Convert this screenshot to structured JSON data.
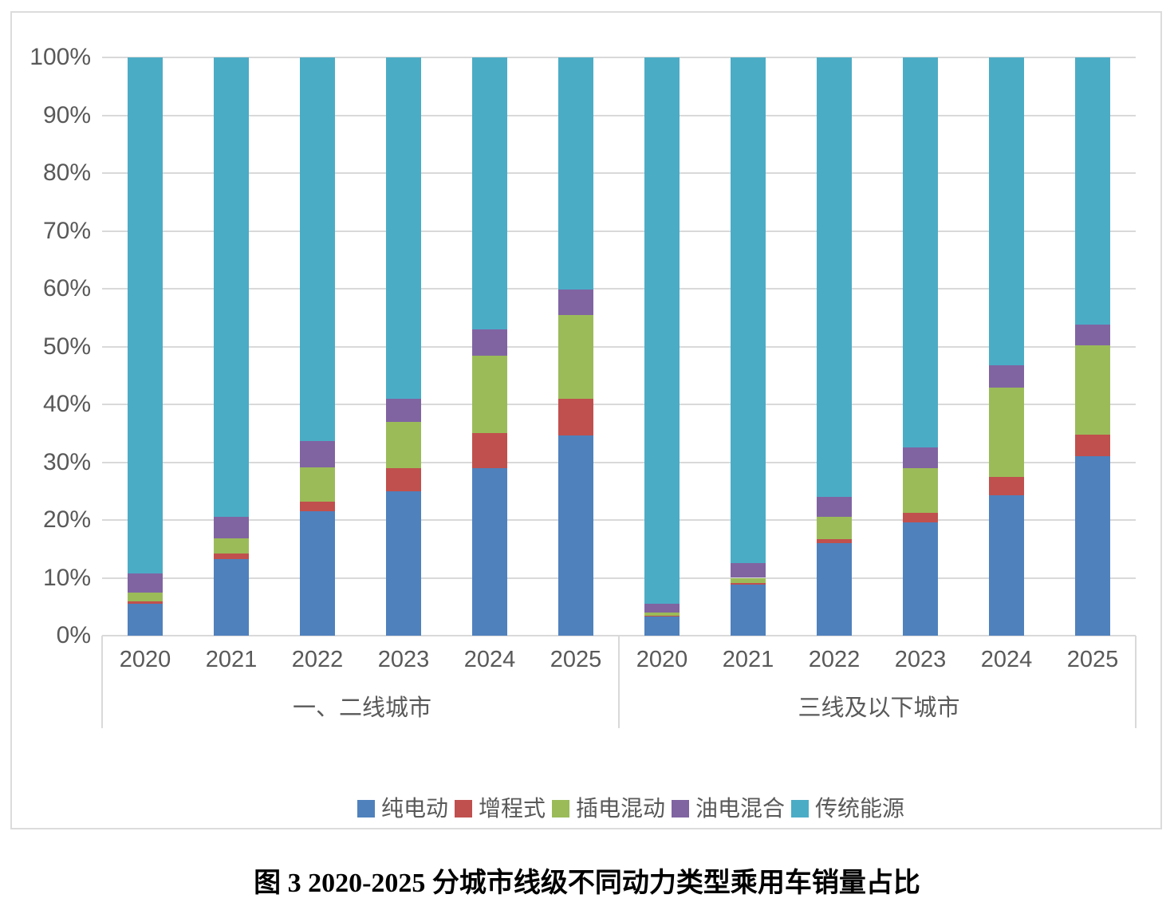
{
  "chart_data": {
    "type": "bar",
    "stacked": true,
    "value_unit": "percent",
    "title": "图 3 2020-2025 分城市线级不同动力类型乘用车销量占比",
    "ylim": [
      0,
      100
    ],
    "yticks": [
      "0%",
      "10%",
      "20%",
      "30%",
      "40%",
      "50%",
      "60%",
      "70%",
      "80%",
      "90%",
      "100%"
    ],
    "grid": true,
    "legend_position": "bottom",
    "categories": [
      "2020",
      "2021",
      "2022",
      "2023",
      "2024",
      "2025"
    ],
    "series_names": [
      "纯电动",
      "增程式",
      "插电混动",
      "油电混合",
      "传统能源"
    ],
    "series_colors": [
      "#4f81bd",
      "#c0504d",
      "#9bbb59",
      "#8064a2",
      "#4bacc6"
    ],
    "groups": [
      {
        "label": "一、二线城市",
        "series": [
          {
            "name": "纯电动",
            "values": [
              5.5,
              13.2,
              21.5,
              25.0,
              28.9,
              34.6
            ]
          },
          {
            "name": "增程式",
            "values": [
              0.4,
              1.0,
              1.7,
              3.9,
              6.2,
              6.3
            ]
          },
          {
            "name": "插电混动",
            "values": [
              1.5,
              2.6,
              5.9,
              8.0,
              13.3,
              14.5
            ]
          },
          {
            "name": "油电混合",
            "values": [
              3.4,
              3.7,
              4.6,
              4.0,
              4.5,
              4.4
            ]
          },
          {
            "name": "传统能源",
            "values": [
              89.2,
              79.5,
              66.3,
              59.1,
              47.1,
              40.2
            ]
          }
        ]
      },
      {
        "label": "三线及以下城市",
        "series": [
          {
            "name": "纯电动",
            "values": [
              3.3,
              8.8,
              16.0,
              19.6,
              24.3,
              31.0
            ]
          },
          {
            "name": "增程式",
            "values": [
              0.2,
              0.3,
              0.7,
              1.6,
              3.2,
              3.7
            ]
          },
          {
            "name": "插电混动",
            "values": [
              0.5,
              0.9,
              3.9,
              7.8,
              15.4,
              15.5
            ]
          },
          {
            "name": "油电混合",
            "values": [
              1.5,
              2.6,
              3.4,
              3.5,
              3.8,
              3.6
            ]
          },
          {
            "name": "传统能源",
            "values": [
              94.5,
              87.4,
              76.0,
              67.5,
              53.3,
              46.2
            ]
          }
        ]
      }
    ],
    "axis_text_color": "#595959",
    "grid_color": "#d9d9d9",
    "frame_border_color": "#dcdcdc"
  }
}
